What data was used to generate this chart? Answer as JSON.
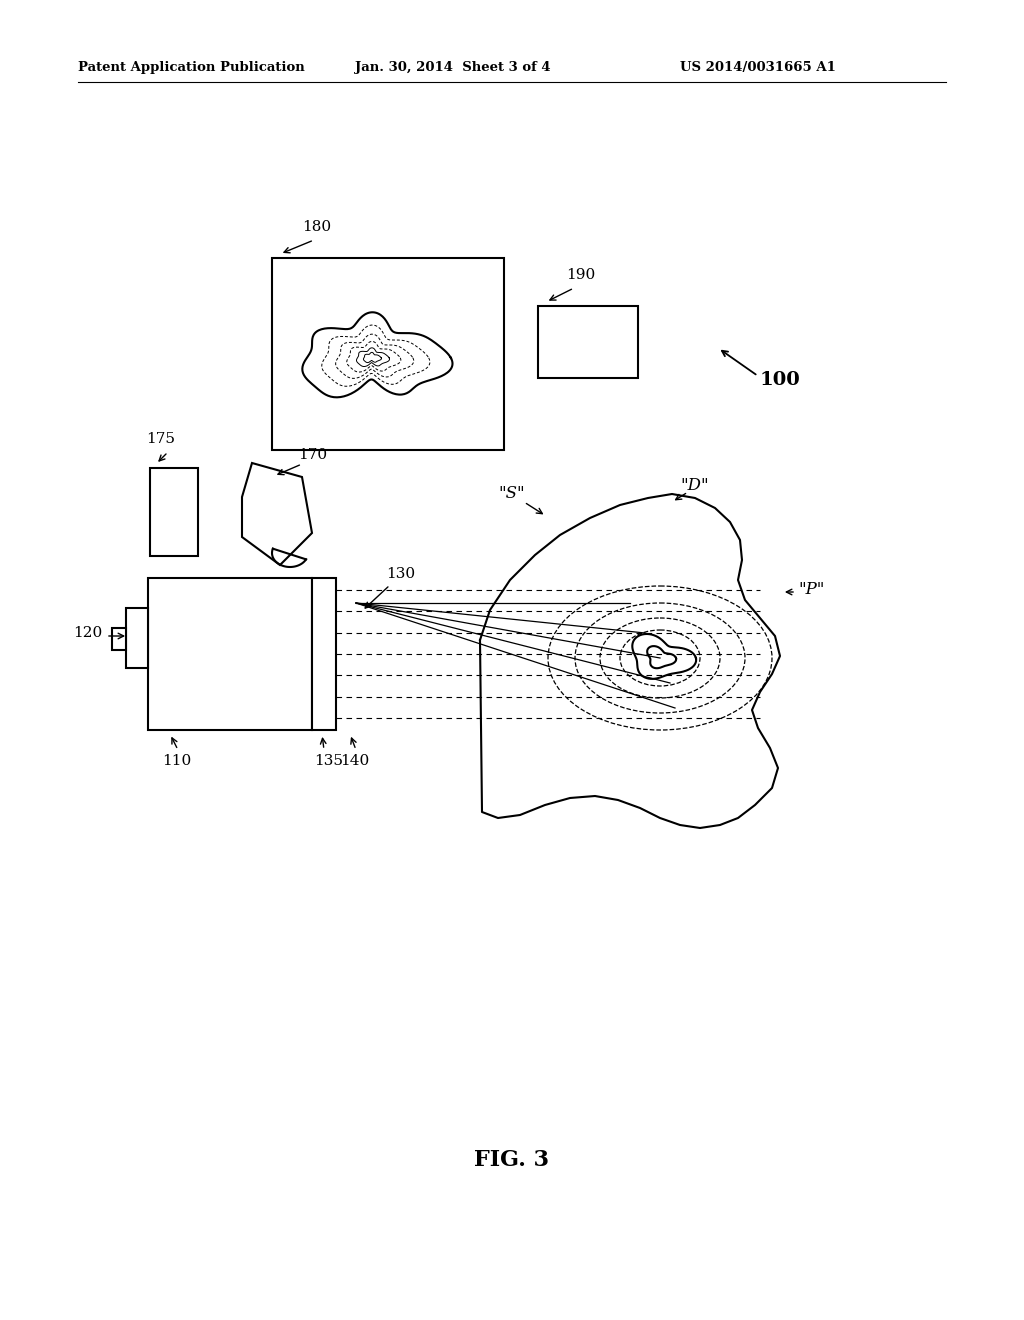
{
  "bg_color": "#ffffff",
  "header_left": "Patent Application Publication",
  "header_mid": "Jan. 30, 2014  Sheet 3 of 4",
  "header_right": "US 2014/0031665 A1",
  "fig_label": "FIG. 3",
  "label_100": "100",
  "label_110": "110",
  "label_120": "120",
  "label_130": "130",
  "label_135": "135",
  "label_140": "140",
  "label_170": "170",
  "label_175": "175",
  "label_180": "180",
  "label_190": "190",
  "label_S": "\"S\"",
  "label_D": "\"D\"",
  "label_P": "\"P\""
}
